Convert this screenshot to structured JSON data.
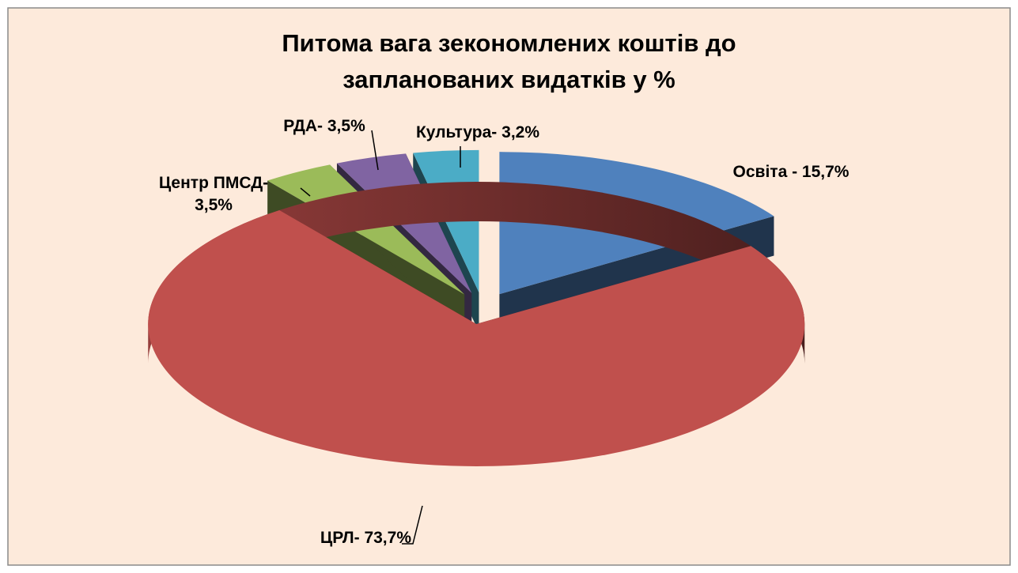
{
  "chart_data": {
    "type": "pie3d",
    "title": "Питома вага зекономлених коштів до\nзапланованих видатків  у %",
    "values": [
      15.7,
      73.7,
      3.5,
      3.5,
      3.2
    ],
    "value_labels": [
      "Освіта - 15,7%",
      "ЦРЛ- 73,7%",
      "Центр ПМСД-\n3,5%",
      "РДА- 3,5%",
      "Культура- 3,2%"
    ],
    "colors": [
      "#4f81bd",
      "#c0504d",
      "#9bbb59",
      "#8064a2",
      "#4bacc6"
    ]
  }
}
